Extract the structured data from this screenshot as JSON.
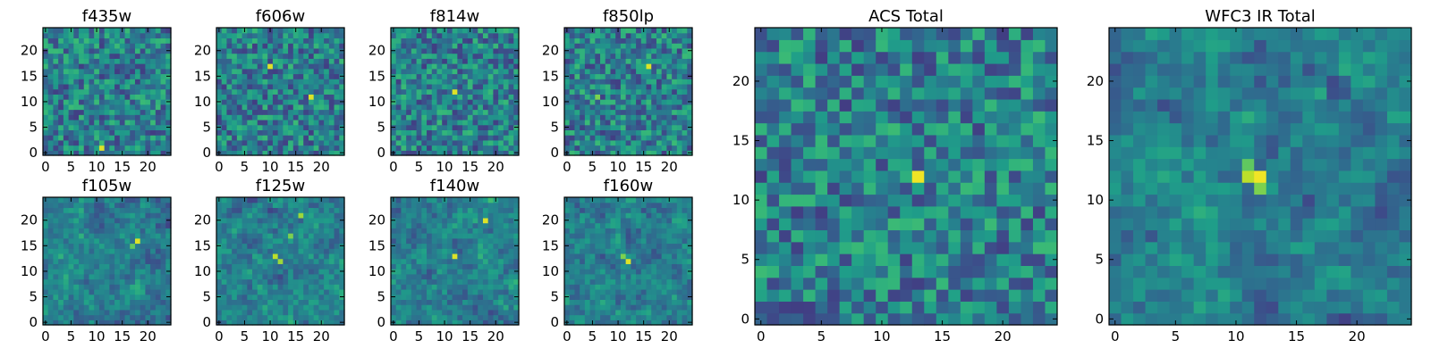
{
  "chart_data": [
    {
      "type": "heatmap",
      "title": "f435w",
      "x_ticks": [
        "0",
        "5",
        "10",
        "15",
        "20"
      ],
      "y_ticks": [
        "0",
        "5",
        "10",
        "15",
        "20"
      ],
      "xlim": [
        -0.5,
        24.5
      ],
      "ylim": [
        -0.5,
        24.5
      ],
      "colormap": "viridis",
      "grid": false,
      "hotspots": [
        [
          11,
          1,
          0.95
        ]
      ],
      "seed": 11
    },
    {
      "type": "heatmap",
      "title": "f606w",
      "x_ticks": [
        "0",
        "5",
        "10",
        "15",
        "20"
      ],
      "y_ticks": [
        "0",
        "5",
        "10",
        "15",
        "20"
      ],
      "xlim": [
        -0.5,
        24.5
      ],
      "ylim": [
        -0.5,
        24.5
      ],
      "colormap": "viridis",
      "grid": false,
      "hotspots": [
        [
          10,
          17,
          0.95
        ],
        [
          18,
          11,
          0.95
        ]
      ],
      "seed": 23
    },
    {
      "type": "heatmap",
      "title": "f814w",
      "x_ticks": [
        "0",
        "5",
        "10",
        "15",
        "20"
      ],
      "y_ticks": [
        "0",
        "5",
        "10",
        "15",
        "20"
      ],
      "xlim": [
        -0.5,
        24.5
      ],
      "ylim": [
        -0.5,
        24.5
      ],
      "colormap": "viridis",
      "grid": false,
      "hotspots": [
        [
          12,
          12,
          0.95
        ]
      ],
      "seed": 37
    },
    {
      "type": "heatmap",
      "title": "f850lp",
      "x_ticks": [
        "0",
        "5",
        "10",
        "15",
        "20"
      ],
      "y_ticks": [
        "0",
        "5",
        "10",
        "15",
        "20"
      ],
      "xlim": [
        -0.5,
        24.5
      ],
      "ylim": [
        -0.5,
        24.5
      ],
      "colormap": "viridis",
      "grid": false,
      "hotspots": [
        [
          16,
          17,
          0.95
        ],
        [
          6,
          11,
          0.8
        ]
      ],
      "seed": 41
    },
    {
      "type": "heatmap",
      "title": "f105w",
      "x_ticks": [
        "0",
        "5",
        "10",
        "15",
        "20"
      ],
      "y_ticks": [
        "0",
        "5",
        "10",
        "15",
        "20"
      ],
      "xlim": [
        -0.5,
        24.5
      ],
      "ylim": [
        -0.5,
        24.5
      ],
      "colormap": "viridis",
      "grid": false,
      "hotspots": [
        [
          18,
          16,
          0.95
        ],
        [
          17,
          15,
          0.75
        ]
      ],
      "seed": 53
    },
    {
      "type": "heatmap",
      "title": "f125w",
      "x_ticks": [
        "0",
        "5",
        "10",
        "15",
        "20"
      ],
      "y_ticks": [
        "0",
        "5",
        "10",
        "15",
        "20"
      ],
      "xlim": [
        -0.5,
        24.5
      ],
      "ylim": [
        -0.5,
        24.5
      ],
      "colormap": "viridis",
      "grid": false,
      "hotspots": [
        [
          11,
          13,
          0.9
        ],
        [
          12,
          12,
          0.85
        ],
        [
          14,
          17,
          0.8
        ],
        [
          16,
          21,
          0.85
        ]
      ],
      "seed": 61
    },
    {
      "type": "heatmap",
      "title": "f140w",
      "x_ticks": [
        "0",
        "5",
        "10",
        "15",
        "20"
      ],
      "y_ticks": [
        "0",
        "5",
        "10",
        "15",
        "20"
      ],
      "xlim": [
        -0.5,
        24.5
      ],
      "ylim": [
        -0.5,
        24.5
      ],
      "colormap": "viridis",
      "grid": false,
      "hotspots": [
        [
          12,
          13,
          0.95
        ],
        [
          18,
          20,
          0.95
        ]
      ],
      "seed": 73
    },
    {
      "type": "heatmap",
      "title": "f160w",
      "x_ticks": [
        "0",
        "5",
        "10",
        "15",
        "20"
      ],
      "y_ticks": [
        "0",
        "5",
        "10",
        "15",
        "20"
      ],
      "xlim": [
        -0.5,
        24.5
      ],
      "ylim": [
        -0.5,
        24.5
      ],
      "colormap": "viridis",
      "grid": false,
      "hotspots": [
        [
          12,
          12,
          0.95
        ],
        [
          11,
          13,
          0.8
        ]
      ],
      "seed": 89
    },
    {
      "type": "heatmap",
      "title": "ACS Total",
      "x_ticks": [
        "0",
        "5",
        "10",
        "15",
        "20"
      ],
      "y_ticks": [
        "0",
        "5",
        "10",
        "15",
        "20"
      ],
      "xlim": [
        -0.5,
        24.5
      ],
      "ylim": [
        -0.5,
        24.5
      ],
      "colormap": "viridis",
      "grid": false,
      "hotspots": [
        [
          13,
          12,
          0.98
        ],
        [
          15,
          16,
          0.65
        ]
      ],
      "seed": 97
    },
    {
      "type": "heatmap",
      "title": "WFC3 IR Total",
      "x_ticks": [
        "0",
        "5",
        "10",
        "15",
        "20"
      ],
      "y_ticks": [
        "0",
        "5",
        "10",
        "15",
        "20"
      ],
      "xlim": [
        -0.5,
        24.5
      ],
      "ylim": [
        -0.5,
        24.5
      ],
      "colormap": "viridis",
      "grid": false,
      "hotspots": [
        [
          12,
          12,
          0.98
        ],
        [
          11,
          12,
          0.9
        ],
        [
          12,
          11,
          0.8
        ],
        [
          11,
          13,
          0.75
        ],
        [
          17,
          19,
          0.6
        ]
      ],
      "seed": 101
    }
  ]
}
